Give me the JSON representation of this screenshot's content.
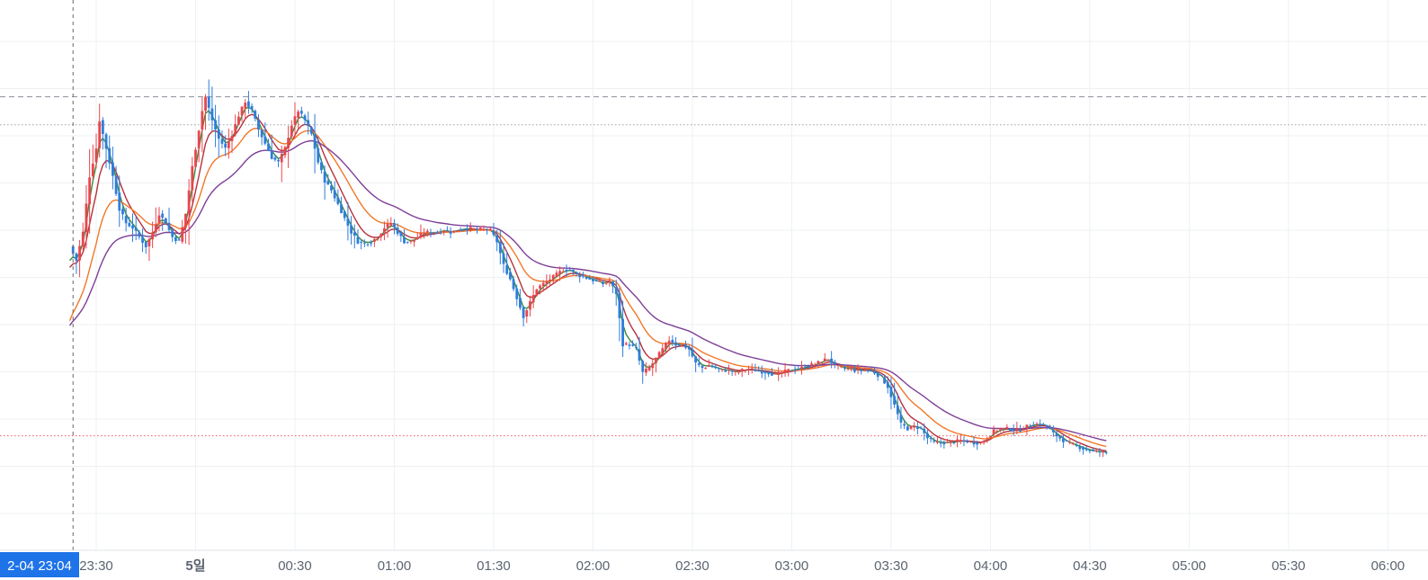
{
  "chart_data": {
    "type": "candlestick",
    "x_ticks": [
      {
        "label": "23:30",
        "min": 0
      },
      {
        "label": "5일",
        "min": 30
      },
      {
        "label": "00:30",
        "min": 60
      },
      {
        "label": "01:00",
        "min": 90
      },
      {
        "label": "01:30",
        "min": 120
      },
      {
        "label": "02:00",
        "min": 150
      },
      {
        "label": "02:30",
        "min": 180
      },
      {
        "label": "03:00",
        "min": 210
      },
      {
        "label": "03:30",
        "min": 240
      },
      {
        "label": "04:00",
        "min": 270
      },
      {
        "label": "04:30",
        "min": 300
      },
      {
        "label": "05:00",
        "min": 330
      },
      {
        "label": "05:30",
        "min": 360
      },
      {
        "label": "06:00",
        "min": 390
      }
    ],
    "x_range_min": [
      -6,
      395
    ],
    "y_range": [
      0,
      100
    ],
    "crosshair": {
      "label": "2-04  23:04",
      "min": -7
    },
    "reference_lines": [
      {
        "name": "dashed-gray",
        "value": 87,
        "color": "#8a8f99",
        "style": "dashed"
      },
      {
        "name": "dotted-gray",
        "value": 81,
        "color": "#9aa0aa",
        "style": "dotted"
      },
      {
        "name": "dotted-red",
        "value": 14.5,
        "color": "#f05a5a",
        "style": "dotted"
      }
    ],
    "price_path": [
      [
        -8,
        55
      ],
      [
        -6,
        52
      ],
      [
        -4,
        58
      ],
      [
        -2,
        70
      ],
      [
        0,
        76
      ],
      [
        1,
        82
      ],
      [
        3,
        76
      ],
      [
        5,
        70
      ],
      [
        7,
        63
      ],
      [
        9,
        60
      ],
      [
        11,
        59
      ],
      [
        13,
        57
      ],
      [
        15,
        55
      ],
      [
        17,
        58
      ],
      [
        19,
        62
      ],
      [
        21,
        60
      ],
      [
        23,
        57
      ],
      [
        25,
        56
      ],
      [
        27,
        62
      ],
      [
        28,
        67
      ],
      [
        29,
        72
      ],
      [
        30,
        76
      ],
      [
        31,
        80
      ],
      [
        32,
        84
      ],
      [
        33,
        87
      ],
      [
        35,
        82
      ],
      [
        37,
        78
      ],
      [
        39,
        76
      ],
      [
        41,
        79
      ],
      [
        43,
        83
      ],
      [
        45,
        86
      ],
      [
        47,
        84
      ],
      [
        49,
        80
      ],
      [
        51,
        77
      ],
      [
        53,
        74
      ],
      [
        55,
        73
      ],
      [
        57,
        76
      ],
      [
        59,
        81
      ],
      [
        61,
        84
      ],
      [
        63,
        82
      ],
      [
        65,
        79
      ],
      [
        67,
        73
      ],
      [
        69,
        69
      ],
      [
        71,
        67
      ],
      [
        73,
        64
      ],
      [
        75,
        61
      ],
      [
        77,
        58
      ],
      [
        79,
        56
      ],
      [
        81,
        55.5
      ],
      [
        83,
        56
      ],
      [
        85,
        57
      ],
      [
        87,
        59
      ],
      [
        89,
        60
      ],
      [
        91,
        58
      ],
      [
        93,
        56
      ],
      [
        95,
        56
      ],
      [
        97,
        57
      ],
      [
        99,
        58
      ],
      [
        101,
        58
      ],
      [
        103,
        58
      ],
      [
        105,
        58.5
      ],
      [
        107,
        58
      ],
      [
        109,
        58.5
      ],
      [
        111,
        58.8
      ],
      [
        113,
        58.8
      ],
      [
        115,
        58.6
      ],
      [
        117,
        58.6
      ],
      [
        119,
        58.4
      ],
      [
        121,
        56
      ],
      [
        123,
        51
      ],
      [
        125,
        48
      ],
      [
        127,
        44
      ],
      [
        129,
        40
      ],
      [
        131,
        43
      ],
      [
        133,
        46
      ],
      [
        135,
        47
      ],
      [
        137,
        48
      ],
      [
        139,
        49
      ],
      [
        141,
        50
      ],
      [
        143,
        50
      ],
      [
        145,
        49
      ],
      [
        147,
        48.5
      ],
      [
        149,
        48
      ],
      [
        151,
        47.5
      ],
      [
        153,
        47
      ],
      [
        155,
        47.5
      ],
      [
        157,
        45
      ],
      [
        159,
        34
      ],
      [
        161,
        34
      ],
      [
        163,
        33
      ],
      [
        165,
        28
      ],
      [
        167,
        29
      ],
      [
        169,
        31
      ],
      [
        171,
        33
      ],
      [
        173,
        35
      ],
      [
        175,
        34
      ],
      [
        177,
        34
      ],
      [
        179,
        33
      ],
      [
        181,
        30
      ],
      [
        183,
        29
      ],
      [
        185,
        29.5
      ],
      [
        187,
        29
      ],
      [
        189,
        28.5
      ],
      [
        191,
        28.5
      ],
      [
        193,
        28
      ],
      [
        195,
        28.5
      ],
      [
        197,
        28.8
      ],
      [
        199,
        28.5
      ],
      [
        201,
        28.2
      ],
      [
        203,
        28
      ],
      [
        205,
        27.5
      ],
      [
        207,
        28
      ],
      [
        209,
        28.5
      ],
      [
        211,
        28.8
      ],
      [
        213,
        29
      ],
      [
        215,
        29.5
      ],
      [
        217,
        29.8
      ],
      [
        219,
        30.5
      ],
      [
        221,
        31
      ],
      [
        223,
        29.5
      ],
      [
        225,
        29
      ],
      [
        227,
        28.8
      ],
      [
        229,
        28.5
      ],
      [
        231,
        28.5
      ],
      [
        233,
        28.5
      ],
      [
        235,
        28
      ],
      [
        237,
        27
      ],
      [
        239,
        25
      ],
      [
        241,
        21
      ],
      [
        243,
        17
      ],
      [
        245,
        16
      ],
      [
        247,
        16.5
      ],
      [
        249,
        16
      ],
      [
        251,
        14
      ],
      [
        253,
        13
      ],
      [
        255,
        13
      ],
      [
        257,
        13
      ],
      [
        259,
        13.2
      ],
      [
        261,
        13.5
      ],
      [
        263,
        13.3
      ],
      [
        265,
        13
      ],
      [
        267,
        13
      ],
      [
        269,
        14
      ],
      [
        271,
        15.5
      ],
      [
        273,
        16
      ],
      [
        275,
        16
      ],
      [
        277,
        15.8
      ],
      [
        279,
        15.8
      ],
      [
        281,
        16.5
      ],
      [
        283,
        17
      ],
      [
        285,
        17
      ],
      [
        287,
        16.5
      ],
      [
        289,
        15
      ],
      [
        291,
        14
      ],
      [
        293,
        13
      ],
      [
        295,
        12.5
      ],
      [
        297,
        12
      ],
      [
        299,
        11.5
      ],
      [
        301,
        11.2
      ],
      [
        303,
        11
      ],
      [
        305,
        11
      ]
    ],
    "series": [
      {
        "name": "ma-green",
        "color": "#3a8a3a",
        "period": 3
      },
      {
        "name": "ma-red",
        "color": "#b5323c",
        "period": 7
      },
      {
        "name": "ma-orange",
        "color": "#f07828",
        "period": 16
      },
      {
        "name": "ma-purple",
        "color": "#7e3f98",
        "period": 32
      }
    ],
    "candle_up_color": "#e8464e",
    "candle_down_color": "#2e7ddb"
  }
}
